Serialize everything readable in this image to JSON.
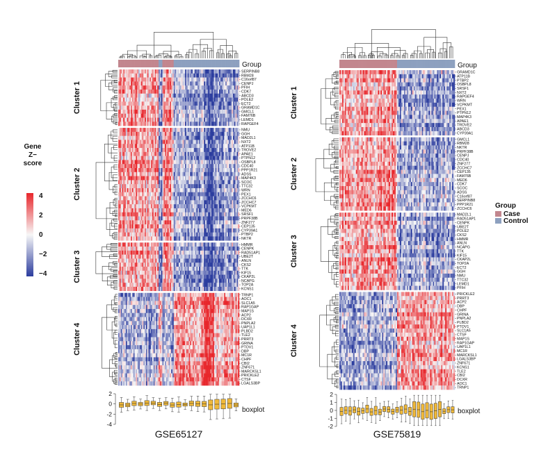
{
  "chart_data": [
    {
      "type": "heatmap",
      "dataset": "GSE65127",
      "group_label": "Group",
      "boxplot_label": "boxplot",
      "boxplot_ylim": [
        -4,
        2
      ],
      "boxplot_ticks": [
        "2",
        "0",
        "-2",
        "-4"
      ],
      "groups": [
        "Case",
        "Case",
        "Case",
        "Case",
        "Case",
        "Case",
        "Case",
        "Case",
        "Case",
        "Case",
        "Case",
        "Case",
        "Case",
        "Case",
        "Case",
        "Case",
        "Case",
        "Case",
        "Case",
        "Case",
        "Case",
        "Case",
        "Case",
        "Case",
        "Case",
        "Case",
        "Case",
        "Case",
        "Case",
        "Case",
        "Case",
        "Case",
        "Control",
        "Control",
        "Control",
        "Case",
        "Case",
        "Case",
        "Case",
        "Case",
        "Case",
        "Case",
        "Case",
        "Case",
        "Control",
        "Control",
        "Control",
        "Control",
        "Control",
        "Control",
        "Control",
        "Control",
        "Control",
        "Control",
        "Control",
        "Control",
        "Control",
        "Control",
        "Control",
        "Control",
        "Control",
        "Control",
        "Control",
        "Control",
        "Control",
        "Control",
        "Control",
        "Control",
        "Control",
        "Control",
        "Control",
        "Control",
        "Control",
        "Control",
        "Control",
        "Control",
        "Control",
        "Control",
        "Control",
        "Control",
        "Control",
        "Control",
        "Control",
        "Control",
        "Control",
        "Control",
        "Control",
        "Control",
        "Control",
        "Control",
        "Control",
        "Control",
        "Control",
        "Control",
        "Control",
        "Control"
      ],
      "clusters": [
        {
          "name": "Cluster 1",
          "pattern": "case-high",
          "genes": [
            "SERPINB8",
            "RBM28",
            "C16orf87",
            "CENPJ",
            "PFIH",
            "CDK7",
            "ABCD3",
            "POLE2",
            "ECT2",
            "GRAMD1C",
            "GMCL1",
            "FAM76B",
            "LEMD1",
            "RAPGEF4"
          ]
        },
        {
          "name": "Cluster 2",
          "pattern": "case-high",
          "genes": [
            "NMU",
            "GGH",
            "MAD2L1",
            "NXT2",
            "ATP11B",
            "TROVE2",
            "APAE1",
            "PTPN12",
            "OSBPL8",
            "CDC40",
            "PPP1R21",
            "ADSS",
            "MAP4K3",
            "SCOC",
            "TTC32",
            "WRN",
            "PEX1",
            "ZCCHC6",
            "ZCCHC7",
            "VCPKMT",
            "MED6",
            "SRSF1",
            "PRPF38B",
            "ZNF277",
            "CEP135",
            "CYP39A1",
            "PTBP2",
            "NKTR"
          ]
        },
        {
          "name": "Cluster 3",
          "pattern": "case-high",
          "genes": [
            "HMMR",
            "CENPK",
            "RAD51AP1",
            "UBE2T",
            "ANLN",
            "CKS2",
            "TTK",
            "KIF15",
            "CKAP2L",
            "NCAPG",
            "TOP2A",
            "KCNS1"
          ]
        },
        {
          "name": "Cluster 4",
          "pattern": "control-high",
          "genes": [
            "TRNP1",
            "AOC1",
            "SLC1A5",
            "RAP1GAP",
            "MAP1S",
            "ACP2",
            "DCXR",
            "PNPLA2",
            "UAP1L1",
            "PLBD2",
            "TLE2",
            "PRRT3",
            "GRINA",
            "PTOV1",
            "DBP",
            "MC1R",
            "CHPF",
            "CBI2",
            "ZNF671",
            "MARCKSL1",
            "PRICKLE2",
            "CTSF",
            "LGALS3BP"
          ]
        }
      ],
      "title": "GSE65127"
    },
    {
      "type": "heatmap",
      "dataset": "GSE75819",
      "group_label": "Group",
      "boxplot_label": "boxplot",
      "boxplot_ylim": [
        -2,
        2
      ],
      "boxplot_ticks": [
        "2",
        "1",
        "0",
        "-1",
        "-2"
      ],
      "groups": [
        "Case",
        "Case",
        "Case",
        "Case",
        "Case",
        "Case",
        "Case",
        "Case",
        "Case",
        "Case",
        "Case",
        "Case",
        "Case",
        "Case",
        "Case",
        "Case",
        "Case",
        "Case",
        "Case",
        "Case",
        "Case",
        "Case",
        "Case",
        "Case",
        "Case",
        "Case",
        "Case",
        "Case",
        "Case",
        "Case",
        "Case",
        "Case",
        "Case",
        "Case",
        "Case",
        "Case",
        "Case",
        "Case",
        "Case",
        "Case",
        "Case",
        "Case",
        "Control",
        "Control",
        "Control",
        "Control",
        "Control",
        "Control",
        "Control",
        "Control",
        "Control",
        "Control",
        "Control",
        "Control",
        "Control",
        "Control",
        "Control",
        "Control",
        "Control",
        "Control",
        "Control",
        "Control",
        "Control",
        "Control",
        "Control",
        "Control",
        "Control",
        "Control",
        "Control",
        "Control",
        "Control",
        "Control",
        "Control",
        "Control",
        "Control",
        "Control",
        "Control",
        "Control",
        "Control",
        "Control",
        "Control",
        "Control",
        "Control",
        "Control"
      ],
      "clusters": [
        {
          "name": "Cluster 1",
          "pattern": "case-high",
          "genes": [
            "GRAMD1C",
            "ATP11B",
            "PTBP2",
            "OSBPL8",
            "SRSF1",
            "NXT2",
            "RAPGEF4",
            "WRN",
            "VCPKMT",
            "PEX1",
            "PTPN12",
            "MAP4K3",
            "APAE1",
            "TROVE2",
            "ABCD3",
            "CYP39A1"
          ]
        },
        {
          "name": "Cluster 2",
          "pattern": "case-high",
          "genes": [
            "GMCL1",
            "RBM28",
            "NKTR",
            "PRPF38B",
            "CENPJ",
            "CDC40",
            "ZNF277",
            "ZCCHC7",
            "CEP135",
            "FAM76B",
            "MED6",
            "CDK7",
            "SCOC",
            "ADSS",
            "C16orf87",
            "SERPINB8",
            "PPP1R21",
            "ZCCHC6"
          ]
        },
        {
          "name": "Cluster 3",
          "pattern": "case-high",
          "genes": [
            "MAD2L1",
            "RAD51AP1",
            "CENPK",
            "UBE2T",
            "POLE2",
            "CKS2",
            "HMMR",
            "ANLN",
            "NCAPG",
            "TTK",
            "KIF15",
            "CKAP2L",
            "TOP2A",
            "ECT2",
            "GGH",
            "NMU",
            "TTC32",
            "LEMD1",
            "PFIH"
          ]
        },
        {
          "name": "Cluster 4",
          "pattern": "control-high",
          "genes": [
            "PRICKLE2",
            "PRRT3",
            "ACP2",
            "DBP",
            "CHPF",
            "GRINA",
            "PNPLA2",
            "PLBD2",
            "PTOV1",
            "SLC1A5",
            "CTSF",
            "MAP1S",
            "RAP1GAP",
            "UAP1L1",
            "MC1R",
            "MARCKSL1",
            "LGALS3BP",
            "ZNF671",
            "KCNS1",
            "TLE2",
            "CBI2",
            "DCXR",
            "AOC1",
            "TRNP1"
          ]
        }
      ],
      "title": "GSE75819"
    }
  ],
  "color_legend": {
    "title_lines": [
      "Gene",
      "Z−",
      "score"
    ],
    "ticks": [
      "4",
      "2",
      "0",
      "−2",
      "−4"
    ],
    "range": [
      -4,
      4
    ]
  },
  "group_legend": {
    "title": "Group",
    "items": [
      {
        "label": "Case",
        "color": "#c2868e"
      },
      {
        "label": "Control",
        "color": "#8da0bf"
      }
    ]
  },
  "colors": {
    "high": "#e8262b",
    "mid": "#f7f7f7",
    "low": "#2b3c9e",
    "box": "#f0b93a",
    "case": "#c2868e",
    "control": "#8da0bf"
  }
}
